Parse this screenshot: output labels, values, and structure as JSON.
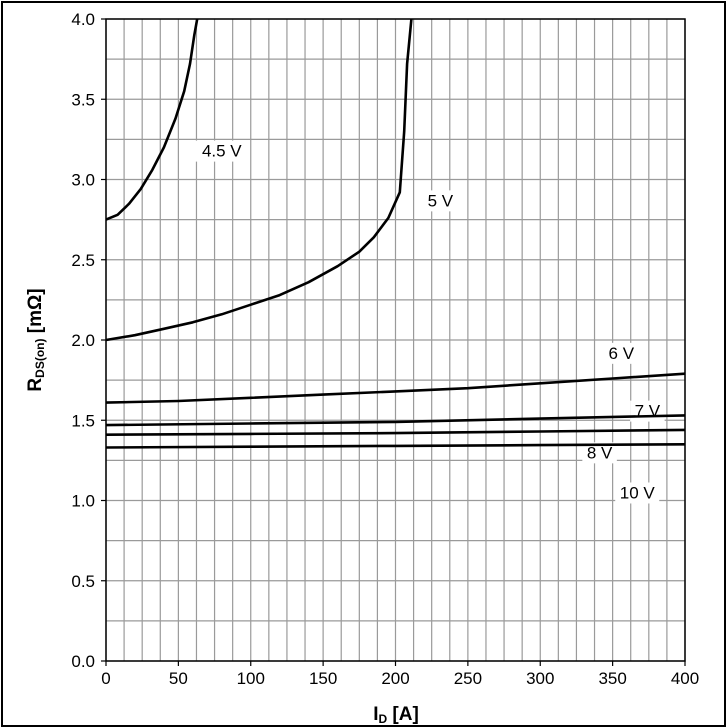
{
  "chart_data": {
    "type": "line",
    "title": "",
    "xlabel": {
      "main": "I",
      "sub": "D",
      "unit": " [A]"
    },
    "ylabel": {
      "main": "R",
      "sub": "DS(on)",
      "unit": "  [mΩ]"
    },
    "xlim": [
      0,
      400
    ],
    "ylim": [
      0,
      4.0
    ],
    "x_ticks": [
      0,
      50,
      100,
      150,
      200,
      250,
      300,
      350,
      400
    ],
    "x_tick_labels": [
      "0",
      "50",
      "100",
      "150",
      "200",
      "250",
      "300",
      "350",
      "400"
    ],
    "y_ticks": [
      0,
      0.5,
      1.0,
      1.5,
      2.0,
      2.5,
      3.0,
      3.5,
      4.0
    ],
    "y_tick_labels": [
      "0.0",
      "0.5",
      "1.0",
      "1.5",
      "2.0",
      "2.5",
      "3.0",
      "3.5",
      "4.0"
    ],
    "grid": {
      "x_step": 12.5,
      "y_step": 0.25
    },
    "series": [
      {
        "name": "4.5 V",
        "points": [
          [
            0,
            2.75
          ],
          [
            8,
            2.78
          ],
          [
            16,
            2.85
          ],
          [
            24,
            2.94
          ],
          [
            32,
            3.06
          ],
          [
            40,
            3.2
          ],
          [
            48,
            3.38
          ],
          [
            54,
            3.55
          ],
          [
            58,
            3.72
          ],
          [
            61,
            3.9
          ],
          [
            63,
            4.0
          ]
        ]
      },
      {
        "name": "5 V",
        "points": [
          [
            0,
            2.0
          ],
          [
            20,
            2.03
          ],
          [
            40,
            2.07
          ],
          [
            60,
            2.11
          ],
          [
            80,
            2.16
          ],
          [
            100,
            2.22
          ],
          [
            120,
            2.28
          ],
          [
            140,
            2.36
          ],
          [
            160,
            2.46
          ],
          [
            175,
            2.55
          ],
          [
            185,
            2.64
          ],
          [
            195,
            2.76
          ],
          [
            203,
            2.92
          ],
          [
            206,
            3.3
          ],
          [
            208,
            3.72
          ],
          [
            211,
            4.0
          ]
        ]
      },
      {
        "name": "6 V",
        "points": [
          [
            0,
            1.61
          ],
          [
            50,
            1.62
          ],
          [
            100,
            1.64
          ],
          [
            150,
            1.66
          ],
          [
            200,
            1.68
          ],
          [
            250,
            1.7
          ],
          [
            300,
            1.73
          ],
          [
            350,
            1.76
          ],
          [
            400,
            1.79
          ]
        ]
      },
      {
        "name": "7 V",
        "points": [
          [
            0,
            1.47
          ],
          [
            100,
            1.48
          ],
          [
            200,
            1.49
          ],
          [
            300,
            1.51
          ],
          [
            400,
            1.53
          ]
        ]
      },
      {
        "name": "8 V",
        "points": [
          [
            0,
            1.41
          ],
          [
            100,
            1.415
          ],
          [
            200,
            1.42
          ],
          [
            300,
            1.43
          ],
          [
            400,
            1.44
          ]
        ]
      },
      {
        "name": "10 V",
        "points": [
          [
            0,
            1.33
          ],
          [
            100,
            1.335
          ],
          [
            200,
            1.34
          ],
          [
            300,
            1.345
          ],
          [
            400,
            1.35
          ]
        ]
      }
    ],
    "annotations": [
      {
        "text": "4.5 V",
        "x": 80,
        "y": 3.18
      },
      {
        "text": "5 V",
        "x": 231,
        "y": 2.87
      },
      {
        "text": "6 V",
        "x": 356,
        "y": 1.92
      },
      {
        "text": "7 V",
        "x": 374,
        "y": 1.56
      },
      {
        "text": "8 V",
        "x": 341,
        "y": 1.3
      },
      {
        "text": "10 V",
        "x": 367,
        "y": 1.05
      }
    ]
  }
}
